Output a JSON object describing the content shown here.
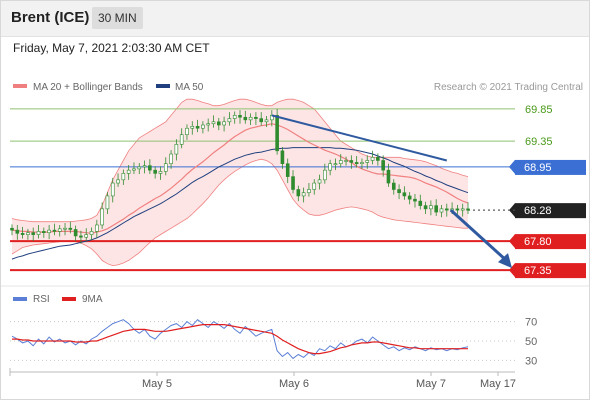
{
  "header": {
    "instrument": "Brent (ICE)",
    "timeframe": "30 MIN"
  },
  "datetime": "Friday, May 7, 2021 2:03:30 AM CET",
  "copyright": "Research © 2021 Trading Central",
  "colors": {
    "candle": "#2e8b2e",
    "ma20": "#f08080",
    "bollinger_fill": "#fde0e0",
    "ma50": "#1f3f7f",
    "resistance_green": "#90c070",
    "resistance_blue": "#3b6fd4",
    "support_red": "#e02020",
    "current_price": "#222222",
    "rsi": "#5b7fd6",
    "rsi_ma": "#e02020",
    "trend_arrow": "#2f5aa0"
  },
  "chart_data": [
    {
      "type": "line",
      "title": "",
      "subtitle": "",
      "xlabel": "",
      "ylabel": "",
      "x_ticks": [
        "May 5",
        "May 6",
        "May 7",
        "May 17"
      ],
      "ylim": [
        67.15,
        70.05
      ],
      "legend": {
        "placement": "top-left",
        "entries": [
          "MA 20 + Bollinger Bands",
          "MA 50"
        ]
      },
      "grid": false,
      "series": [
        {
          "name": "price",
          "values": [
            67.97,
            67.92,
            67.9,
            67.93,
            67.9,
            67.95,
            67.93,
            67.97,
            67.95,
            67.99,
            68.0,
            67.98,
            67.88,
            67.86,
            67.9,
            67.95,
            68.05,
            68.3,
            68.5,
            68.7,
            68.75,
            68.85,
            68.9,
            68.92,
            68.95,
            68.97,
            68.9,
            68.85,
            68.88,
            69.0,
            69.15,
            69.3,
            69.45,
            69.55,
            69.58,
            69.55,
            69.6,
            69.62,
            69.65,
            69.6,
            69.65,
            69.7,
            69.75,
            69.72,
            69.68,
            69.72,
            69.7,
            69.65,
            69.68,
            69.75,
            69.2,
            69.0,
            68.8,
            68.6,
            68.5,
            68.55,
            68.6,
            68.7,
            68.75,
            68.9,
            69.0,
            69.0,
            69.05,
            69.05,
            69.02,
            69.0,
            69.02,
            69.05,
            69.1,
            69.05,
            68.9,
            68.7,
            68.6,
            68.55,
            68.5,
            68.45,
            68.42,
            68.35,
            68.3,
            68.35,
            68.25,
            68.3,
            68.28,
            68.3,
            68.28,
            68.3,
            68.28
          ]
        },
        {
          "name": "MA 20",
          "values": [
            67.97,
            67.96,
            67.95,
            67.95,
            67.94,
            67.94,
            67.94,
            67.94,
            67.95,
            67.95,
            67.95,
            67.95,
            67.95,
            67.94,
            67.93,
            67.92,
            67.94,
            67.96,
            67.99,
            68.04,
            68.09,
            68.14,
            68.2,
            68.25,
            68.31,
            68.36,
            68.41,
            68.46,
            68.5,
            68.56,
            68.62,
            68.69,
            68.76,
            68.84,
            68.91,
            68.97,
            69.03,
            69.1,
            69.17,
            69.23,
            69.29,
            69.36,
            69.42,
            69.47,
            69.52,
            69.55,
            69.57,
            69.59,
            69.6,
            69.62,
            69.6,
            69.57,
            69.53,
            69.48,
            69.43,
            69.38,
            69.33,
            69.29,
            69.25,
            69.21,
            69.18,
            69.15,
            69.11,
            69.07,
            69.02,
            68.96,
            68.92,
            68.89,
            68.86,
            68.84,
            68.84,
            68.83,
            68.82,
            68.81,
            68.8,
            68.79,
            68.77,
            68.74,
            68.7,
            68.67,
            68.64,
            68.6,
            68.56,
            68.51,
            68.46,
            68.42,
            68.39
          ]
        },
        {
          "name": "Bollinger upper",
          "values": [
            68.15,
            68.13,
            68.12,
            68.11,
            68.1,
            68.1,
            68.1,
            68.1,
            68.1,
            68.1,
            68.1,
            68.1,
            68.11,
            68.12,
            68.13,
            68.15,
            68.2,
            68.35,
            68.55,
            68.75,
            68.9,
            69.05,
            69.2,
            69.3,
            69.4,
            69.45,
            69.5,
            69.55,
            69.6,
            69.65,
            69.75,
            69.85,
            69.95,
            70.0,
            70.0,
            69.98,
            69.95,
            69.93,
            69.9,
            69.9,
            69.92,
            69.95,
            69.98,
            70.0,
            70.0,
            69.98,
            69.95,
            69.92,
            69.9,
            69.9,
            69.95,
            69.98,
            70.0,
            70.0,
            69.98,
            69.95,
            69.9,
            69.85,
            69.75,
            69.65,
            69.55,
            69.45,
            69.35,
            69.3,
            69.25,
            69.2,
            69.15,
            69.12,
            69.1,
            69.1,
            69.1,
            69.1,
            69.1,
            69.1,
            69.08,
            69.07,
            69.06,
            69.05,
            69.03,
            69.0,
            68.97,
            68.93,
            68.9,
            68.87,
            68.85,
            68.82,
            68.8
          ]
        },
        {
          "name": "Bollinger lower",
          "values": [
            67.6,
            67.65,
            67.7,
            67.72,
            67.74,
            67.75,
            67.76,
            67.77,
            67.78,
            67.79,
            67.8,
            67.8,
            67.79,
            67.77,
            67.73,
            67.68,
            67.6,
            67.5,
            67.45,
            67.42,
            67.43,
            67.46,
            67.5,
            67.56,
            67.62,
            67.7,
            67.78,
            67.85,
            67.9,
            67.95,
            68.0,
            68.05,
            68.1,
            68.15,
            68.22,
            68.3,
            68.38,
            68.47,
            68.57,
            68.67,
            68.75,
            68.82,
            68.88,
            68.93,
            68.98,
            69.02,
            69.05,
            69.07,
            69.05,
            69.0,
            68.9,
            68.75,
            68.6,
            68.45,
            68.35,
            68.28,
            68.22,
            68.2,
            68.2,
            68.22,
            68.25,
            68.28,
            68.3,
            68.32,
            68.33,
            68.32,
            68.3,
            68.28,
            68.25,
            68.2,
            68.17,
            68.15,
            68.13,
            68.12,
            68.11,
            68.1,
            68.09,
            68.08,
            68.07,
            68.06,
            68.05,
            68.04,
            68.03,
            68.02,
            68.01,
            68.0,
            68.0
          ]
        },
        {
          "name": "MA 50",
          "values": [
            67.52,
            67.55,
            67.57,
            67.6,
            67.62,
            67.64,
            67.66,
            67.68,
            67.7,
            67.72,
            67.73,
            67.74,
            67.76,
            67.78,
            67.8,
            67.82,
            67.85,
            67.89,
            67.93,
            67.98,
            68.03,
            68.08,
            68.13,
            68.18,
            68.22,
            68.26,
            68.3,
            68.34,
            68.38,
            68.43,
            68.48,
            68.53,
            68.59,
            68.65,
            68.71,
            68.76,
            68.8,
            68.85,
            68.9,
            68.95,
            68.99,
            69.03,
            69.07,
            69.1,
            69.13,
            69.15,
            69.17,
            69.18,
            69.2,
            69.22,
            69.23,
            69.24,
            69.24,
            69.25,
            69.25,
            69.25,
            69.25,
            69.25,
            69.25,
            69.25,
            69.25,
            69.24,
            69.24,
            69.23,
            69.22,
            69.21,
            69.19,
            69.17,
            69.15,
            69.12,
            69.09,
            69.06,
            69.02,
            68.99,
            68.96,
            68.92,
            68.88,
            68.85,
            68.81,
            68.78,
            68.74,
            68.71,
            68.67,
            68.64,
            68.61,
            68.58,
            68.55
          ]
        }
      ],
      "levels": [
        {
          "value": 69.85,
          "label": "69.85",
          "kind": "resistance-green"
        },
        {
          "value": 69.35,
          "label": "69.35",
          "kind": "resistance-green"
        },
        {
          "value": 68.95,
          "label": "68.95",
          "kind": "pivot-blue"
        },
        {
          "value": 68.28,
          "label": "68.28",
          "kind": "current"
        },
        {
          "value": 67.8,
          "label": "67.80",
          "kind": "support-red"
        },
        {
          "value": 67.35,
          "label": "67.35",
          "kind": "support-red"
        }
      ],
      "trendline": {
        "from": [
          49,
          69.75
        ],
        "to": [
          82,
          69.05
        ]
      },
      "forecast_arrow": {
        "from": [
          82,
          68.28
        ],
        "to": [
          87,
          67.35
        ]
      }
    },
    {
      "type": "line",
      "title": "",
      "subtitle": "",
      "xlabel": "",
      "ylabel": "",
      "ylim": [
        20,
        80
      ],
      "y_ticks": [
        70,
        50,
        30
      ],
      "legend": {
        "placement": "top-left",
        "entries": [
          "RSI",
          "9MA"
        ]
      },
      "grid": false,
      "series": [
        {
          "name": "RSI",
          "values": [
            55,
            52,
            48,
            50,
            45,
            52,
            47,
            54,
            49,
            52,
            48,
            50,
            46,
            50,
            47,
            52,
            55,
            60,
            64,
            68,
            70,
            72,
            68,
            62,
            58,
            62,
            55,
            52,
            58,
            62,
            66,
            68,
            64,
            70,
            66,
            72,
            68,
            64,
            70,
            67,
            63,
            68,
            62,
            58,
            65,
            60,
            55,
            58,
            60,
            62,
            40,
            34,
            38,
            32,
            36,
            33,
            38,
            35,
            42,
            40,
            45,
            42,
            48,
            44,
            46,
            50,
            52,
            48,
            54,
            50,
            46,
            42,
            44,
            40,
            43,
            41,
            44,
            42,
            40,
            43,
            41,
            42,
            40,
            42,
            41,
            43,
            44
          ]
        },
        {
          "name": "9MA",
          "values": [
            52,
            52,
            51,
            51,
            50,
            50,
            50,
            50,
            50,
            50,
            50,
            50,
            49,
            49,
            49,
            50,
            50,
            52,
            54,
            56,
            58,
            60,
            61,
            62,
            62,
            62,
            61,
            60,
            60,
            60,
            61,
            62,
            63,
            64,
            65,
            66,
            67,
            67,
            67,
            67,
            67,
            66,
            65,
            64,
            63,
            62,
            61,
            60,
            59,
            58,
            55,
            51,
            48,
            45,
            42,
            40,
            38,
            37,
            37,
            38,
            39,
            41,
            43,
            44,
            46,
            47,
            48,
            48,
            49,
            49,
            48,
            47,
            46,
            45,
            44,
            43,
            43,
            42,
            42,
            42,
            42,
            42,
            42,
            42,
            42,
            42,
            42
          ]
        }
      ]
    }
  ]
}
